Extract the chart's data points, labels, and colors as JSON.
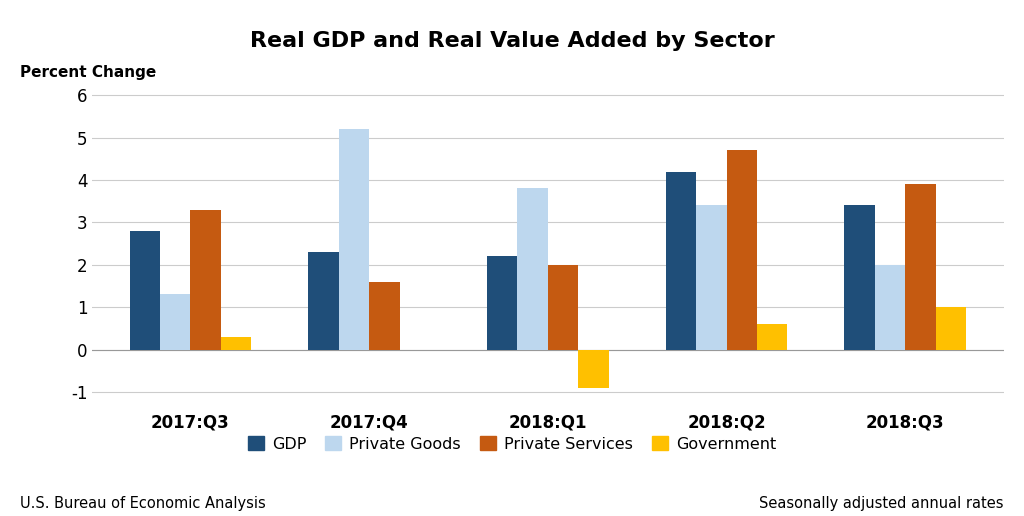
{
  "title": "Real GDP and Real Value Added by Sector",
  "percent_change_label": "Percent Change",
  "categories": [
    "2017:Q3",
    "2017:Q4",
    "2018:Q1",
    "2018:Q2",
    "2018:Q3"
  ],
  "series": {
    "GDP": [
      2.8,
      2.3,
      2.2,
      4.2,
      3.4
    ],
    "Private Goods": [
      1.3,
      5.2,
      3.8,
      3.4,
      2.0
    ],
    "Private Services": [
      3.3,
      1.6,
      2.0,
      4.7,
      3.9
    ],
    "Government": [
      0.3,
      0.0,
      -0.9,
      0.6,
      1.0
    ]
  },
  "colors": {
    "GDP": "#1F4E79",
    "Private Goods": "#BDD7EE",
    "Private Services": "#C55A11",
    "Government": "#FFC000"
  },
  "ylim": [
    -1.25,
    6.3
  ],
  "yticks": [
    -1,
    0,
    1,
    2,
    3,
    4,
    5,
    6
  ],
  "bar_width": 0.17,
  "background_color": "#FFFFFF",
  "footer_left": "U.S. Bureau of Economic Analysis",
  "footer_right": "Seasonally adjusted annual rates"
}
